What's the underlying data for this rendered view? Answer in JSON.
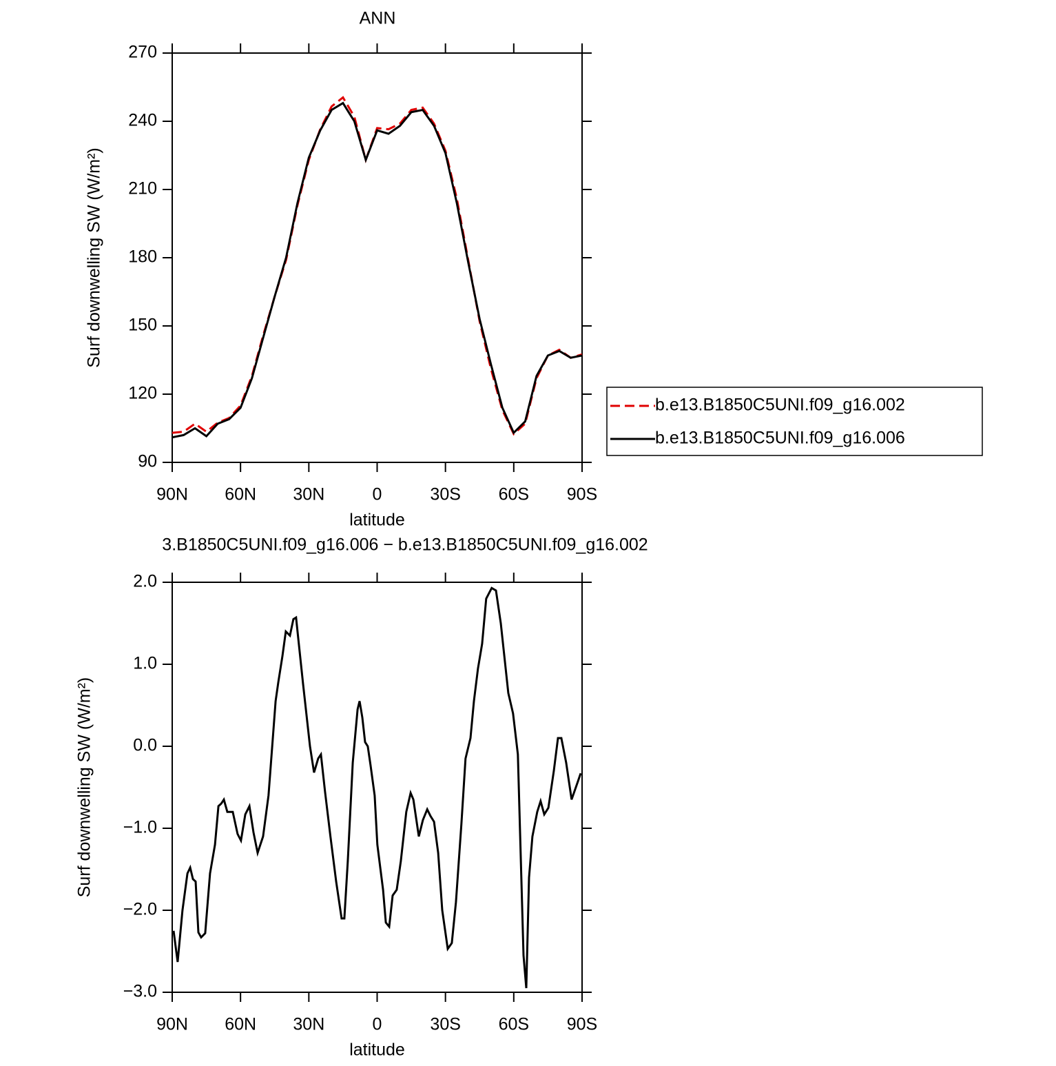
{
  "chart_data": [
    {
      "type": "line",
      "title": "ANN",
      "xlabel": "latitude",
      "ylabel": "Surf downwelling SW (W/m²)",
      "x": [
        90,
        85,
        80,
        75,
        70,
        65,
        60,
        55,
        50,
        45,
        40,
        35,
        30,
        25,
        20,
        15,
        10,
        5,
        0,
        -5,
        -10,
        -15,
        -20,
        -25,
        -30,
        -35,
        -40,
        -45,
        -50,
        -55,
        -60,
        -65,
        -70,
        -75,
        -80,
        -85,
        -90
      ],
      "series": [
        {
          "name": "b.e13.B1850C5UNI.f09_g16.002",
          "color": "#e00000",
          "dash": true,
          "values": [
            103,
            103.5,
            107,
            103.5,
            107.5,
            109.5,
            115,
            128,
            146,
            163,
            179,
            203,
            223,
            236.5,
            246.5,
            250.5,
            242,
            223,
            237,
            236.5,
            239,
            245,
            246,
            239,
            227,
            206,
            179,
            152,
            131,
            113,
            102.5,
            107,
            127,
            137,
            139.5,
            136,
            137.5
          ]
        },
        {
          "name": "b.e13.B1850C5UNI.f09_g16.006",
          "color": "#000000",
          "dash": false,
          "values": [
            101,
            102,
            105,
            101.5,
            107,
            109,
            114,
            127,
            145,
            163,
            180,
            204,
            224,
            236,
            245,
            248,
            240,
            223,
            236,
            234.5,
            238,
            244,
            245,
            238,
            226,
            204,
            178,
            153,
            133,
            114,
            103,
            108,
            128,
            137,
            139,
            136,
            137
          ]
        }
      ],
      "xlim": [
        90,
        -90
      ],
      "xticks": [
        {
          "value": 90,
          "label": "90N"
        },
        {
          "value": 60,
          "label": "60N"
        },
        {
          "value": 30,
          "label": "30N"
        },
        0,
        {
          "value": -30,
          "label": "30S"
        },
        {
          "value": -60,
          "label": "60S"
        },
        {
          "value": -90,
          "label": "90S"
        }
      ],
      "ylim": [
        90,
        270
      ],
      "yticks": [
        90,
        120,
        150,
        180,
        210,
        240,
        270
      ],
      "legend": "right"
    },
    {
      "type": "line",
      "title": "3.B1850C5UNI.f09_g16.006 − b.e13.B1850C5UNI.f09_g16.002",
      "xlabel": "latitude",
      "ylabel": "Surf downwelling SW (W/m²)",
      "x": [
        89.4,
        87.6,
        85.5,
        83.3,
        82.1,
        80.9,
        79.7,
        78.5,
        77.3,
        75.5,
        73.4,
        71.2,
        69.7,
        68.5,
        67.3,
        65.8,
        63.4,
        61.3,
        59.8,
        57.9,
        56.1,
        54.3,
        52.5,
        50.1,
        47.7,
        44.6,
        43.4,
        41.6,
        40.1,
        38.3,
        36.8,
        35.6,
        34.4,
        32.5,
        29.5,
        27.7,
        25.9,
        24.7,
        22.9,
        20.5,
        18.0,
        15.6,
        14.4,
        12.9,
        10.7,
        8.6,
        7.7,
        6.5,
        5.3,
        4.1,
        2.9,
        1.1,
        -0.1,
        -2.6,
        -3.8,
        -5.3,
        -6.8,
        -8.6,
        -10.4,
        -12.8,
        -14.7,
        -15.9,
        -18.3,
        -20.1,
        -22.0,
        -23.4,
        -25.0,
        -26.8,
        -28.6,
        -31.0,
        -32.8,
        -34.6,
        -37.0,
        -38.8,
        -41.0,
        -42.5,
        -44.3,
        -46.1,
        -47.9,
        -50.3,
        -52.2,
        -54.3,
        -57.6,
        -59.7,
        -61.8,
        -64.3,
        -65.5,
        -66.7,
        -68.2,
        -70.3,
        -71.8,
        -73.4,
        -75.2,
        -77.6,
        -79.4,
        -80.9,
        -83.0,
        -85.4,
        -87.9,
        -89.4
      ],
      "series": [
        {
          "color": "#000000",
          "dash": false,
          "values": [
            -2.25,
            -2.63,
            -2.0,
            -1.55,
            -1.48,
            -1.62,
            -1.65,
            -2.27,
            -2.33,
            -2.28,
            -1.55,
            -1.2,
            -0.73,
            -0.7,
            -0.65,
            -0.8,
            -0.8,
            -1.07,
            -1.15,
            -0.83,
            -0.73,
            -1.05,
            -1.3,
            -1.1,
            -0.6,
            0.55,
            0.78,
            1.1,
            1.4,
            1.35,
            1.55,
            1.57,
            1.25,
            0.75,
            0.0,
            -0.32,
            -0.15,
            -0.1,
            -0.55,
            -1.1,
            -1.65,
            -2.1,
            -2.1,
            -1.4,
            -0.2,
            0.45,
            0.55,
            0.35,
            0.05,
            0.0,
            -0.23,
            -0.6,
            -1.2,
            -1.75,
            -2.15,
            -2.2,
            -1.82,
            -1.75,
            -1.4,
            -0.8,
            -0.57,
            -0.65,
            -1.1,
            -0.9,
            -0.77,
            -0.85,
            -0.92,
            -1.3,
            -2.0,
            -2.47,
            -2.4,
            -1.9,
            -0.95,
            -0.15,
            0.1,
            0.55,
            0.95,
            1.25,
            1.8,
            1.93,
            1.9,
            1.5,
            0.65,
            0.4,
            -0.1,
            -2.55,
            -2.95,
            -1.6,
            -1.1,
            -0.8,
            -0.67,
            -0.83,
            -0.75,
            -0.3,
            0.1,
            0.1,
            -0.2,
            -0.65,
            -0.45,
            -0.33
          ]
        }
      ],
      "xlim": [
        90,
        -90
      ],
      "xticks": [
        {
          "value": 90,
          "label": "90N"
        },
        {
          "value": 60,
          "label": "60N"
        },
        {
          "value": 30,
          "label": "30N"
        },
        0,
        {
          "value": -30,
          "label": "30S"
        },
        {
          "value": -60,
          "label": "60S"
        },
        {
          "value": -90,
          "label": "90S"
        }
      ],
      "ylim": [
        -3,
        2
      ],
      "yticks": [
        {
          "value": -3,
          "label": "−3.0"
        },
        {
          "value": -2,
          "label": "−2.0"
        },
        {
          "value": -1,
          "label": "−1.0"
        },
        {
          "value": 0,
          "label": "0.0"
        },
        {
          "value": 1,
          "label": "1.0"
        },
        {
          "value": 2,
          "label": "2.0"
        }
      ]
    }
  ]
}
